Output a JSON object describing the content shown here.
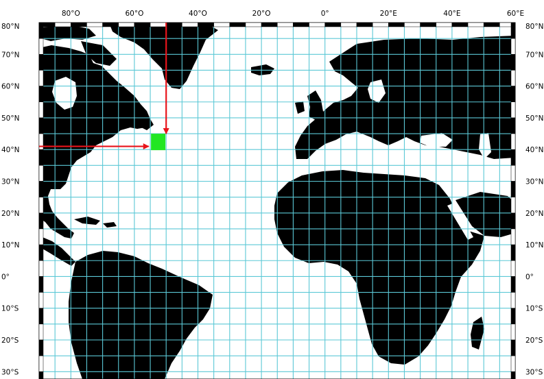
{
  "map": {
    "projection": "equirectangular",
    "extent": {
      "lon_west": -90,
      "lon_east": 60,
      "lat_south": -30,
      "lat_north": 80
    },
    "grid_step_degrees": 5,
    "colors": {
      "land": "#000000",
      "ocean": "#ffffff",
      "gridline": "#5bc8d6",
      "marker": "#22e622",
      "arrow": "#e8141b",
      "frame": "#000000"
    },
    "top_labels": [
      {
        "lon": -80,
        "text": "80°O"
      },
      {
        "lon": -60,
        "text": "60°O"
      },
      {
        "lon": -40,
        "text": "40°O"
      },
      {
        "lon": -20,
        "text": "20°O"
      },
      {
        "lon": 0,
        "text": "0°"
      },
      {
        "lon": 20,
        "text": "20°E"
      },
      {
        "lon": 40,
        "text": "40°E"
      },
      {
        "lon": 60,
        "text": "60°E"
      }
    ],
    "side_labels": [
      {
        "lat": 80,
        "text": "80°N"
      },
      {
        "lat": 70,
        "text": "70°N"
      },
      {
        "lat": 60,
        "text": "60°N"
      },
      {
        "lat": 50,
        "text": "50°N"
      },
      {
        "lat": 40,
        "text": "40°N"
      },
      {
        "lat": 30,
        "text": "30°N"
      },
      {
        "lat": 20,
        "text": "20°N"
      },
      {
        "lat": 10,
        "text": "10°N"
      },
      {
        "lat": 0,
        "text": "0°"
      },
      {
        "lat": -10,
        "text": "10°S"
      },
      {
        "lat": -20,
        "text": "20°S"
      },
      {
        "lat": -30,
        "text": "30°S"
      }
    ],
    "marker": {
      "lon": -52.5,
      "lat": 42.5
    },
    "arrows": [
      {
        "from": {
          "lon": -50,
          "lat": 80
        },
        "to": {
          "lon": -50,
          "lat": 45
        }
      },
      {
        "from": {
          "lon": -90,
          "lat": 41
        },
        "to": {
          "lon": -55.5,
          "lat": 41
        }
      }
    ]
  }
}
